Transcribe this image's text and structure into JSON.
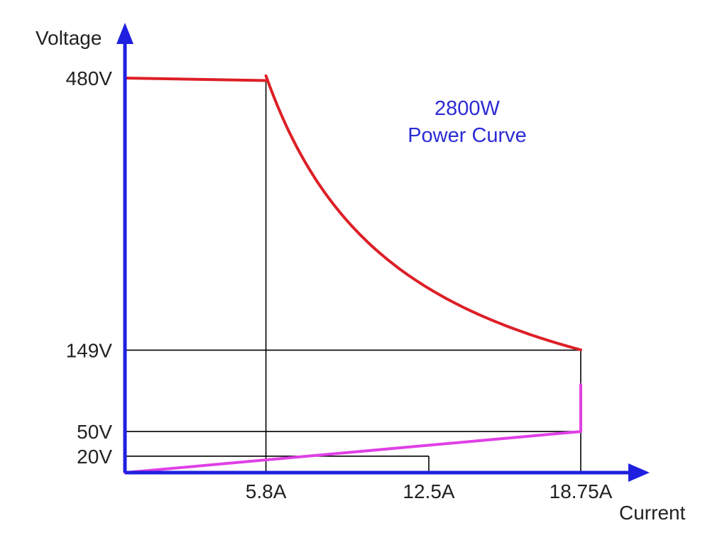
{
  "chart_data": {
    "type": "line",
    "xlabel": "Current",
    "ylabel": "Voltage",
    "xlim": [
      0,
      21.5
    ],
    "ylim": [
      0,
      560
    ],
    "x_ticks": [
      {
        "value": 5.8,
        "label": "5.8A"
      },
      {
        "value": 12.5,
        "label": "12.5A"
      },
      {
        "value": 18.75,
        "label": "18.75A"
      }
    ],
    "y_ticks": [
      {
        "value": 480,
        "label": "480V"
      },
      {
        "value": 149,
        "label": "149V"
      },
      {
        "value": 50,
        "label": "50V"
      },
      {
        "value": 20,
        "label": "20V"
      }
    ],
    "annotation": [
      "2800W",
      "Power Curve"
    ],
    "power_watts": 2800,
    "colors": {
      "axis": "#1f1fe0",
      "power_curve": "#dd1f26",
      "low_limit": "#e040e6",
      "guide": "#000000",
      "annotation": "#2b2bd6"
    },
    "series": [
      {
        "kind": "max-voltage-flat",
        "color": "red",
        "points": [
          [
            0,
            480
          ],
          [
            5.8,
            477
          ]
        ]
      },
      {
        "kind": "constant-power-curve",
        "color": "red",
        "from_current": 5.8,
        "to_current": 18.75
      },
      {
        "kind": "min-current-line",
        "color": "magenta",
        "points": [
          [
            0,
            0
          ],
          [
            18.75,
            50
          ]
        ]
      },
      {
        "kind": "max-current-vertical",
        "color": "magenta",
        "points": [
          [
            18.75,
            50
          ],
          [
            18.75,
            107
          ]
        ]
      }
    ],
    "guides": [
      {
        "points": [
          [
            5.8,
            477
          ],
          [
            5.8,
            0
          ]
        ]
      },
      {
        "points": [
          [
            0,
            149
          ],
          [
            18.75,
            149
          ]
        ]
      },
      {
        "points": [
          [
            18.75,
            149
          ],
          [
            18.75,
            0
          ]
        ]
      },
      {
        "points": [
          [
            0,
            50
          ],
          [
            18.75,
            50
          ]
        ]
      },
      {
        "points": [
          [
            0,
            20
          ],
          [
            12.5,
            20
          ]
        ]
      },
      {
        "points": [
          [
            12.5,
            20
          ],
          [
            12.5,
            0
          ]
        ]
      }
    ]
  }
}
